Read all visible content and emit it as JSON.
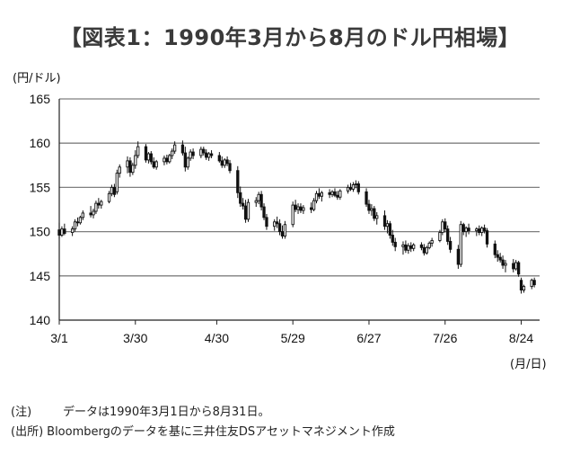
{
  "title": "【図表1：1990年3月から8月のドル円相場】",
  "chart_data": {
    "type": "candlestick",
    "y_unit_label": "(円/ドル)",
    "x_unit_label": "(月/日)",
    "ylim": [
      140,
      165
    ],
    "y_ticks": [
      165,
      160,
      155,
      150,
      145,
      140
    ],
    "x_ticks": [
      {
        "label": "3/1",
        "day": 0
      },
      {
        "label": "3/30",
        "day": 29
      },
      {
        "label": "4/30",
        "day": 60
      },
      {
        "label": "5/29",
        "day": 89
      },
      {
        "label": "6/27",
        "day": 118
      },
      {
        "label": "7/26",
        "day": 147
      },
      {
        "label": "8/24",
        "day": 176
      }
    ],
    "xlim_days": [
      0,
      183
    ],
    "grid": "horizontal",
    "candles": [
      [
        0,
        150.2,
        151.0,
        149.2,
        149.6
      ],
      [
        1,
        149.6,
        150.6,
        149.4,
        150.3
      ],
      [
        2,
        150.3,
        150.9,
        149.6,
        149.8
      ],
      [
        5,
        149.9,
        150.6,
        149.5,
        150.3
      ],
      [
        6,
        150.3,
        151.4,
        150.0,
        151.1
      ],
      [
        7,
        151.1,
        151.6,
        150.6,
        151.0
      ],
      [
        8,
        151.0,
        151.8,
        150.8,
        151.6
      ],
      [
        9,
        151.6,
        152.4,
        151.3,
        152.1
      ],
      [
        12,
        152.1,
        152.9,
        151.6,
        151.9
      ],
      [
        13,
        151.9,
        152.6,
        151.5,
        152.3
      ],
      [
        14,
        152.3,
        153.5,
        152.0,
        153.2
      ],
      [
        15,
        153.2,
        153.8,
        152.6,
        153.0
      ],
      [
        16,
        153.0,
        153.6,
        152.6,
        153.4
      ],
      [
        19,
        153.4,
        154.6,
        153.2,
        154.3
      ],
      [
        20,
        154.3,
        155.3,
        154.0,
        155.0
      ],
      [
        21,
        155.0,
        155.4,
        153.9,
        154.2
      ],
      [
        22,
        154.5,
        157.0,
        154.2,
        156.6
      ],
      [
        23,
        156.6,
        157.6,
        156.1,
        157.3
      ],
      [
        26,
        157.3,
        158.5,
        156.6,
        158.0
      ],
      [
        27,
        158.0,
        158.4,
        156.2,
        156.7
      ],
      [
        28,
        156.7,
        157.8,
        156.4,
        157.5
      ],
      [
        29,
        157.5,
        159.2,
        157.1,
        158.6
      ],
      [
        30,
        158.6,
        160.2,
        158.3,
        159.6
      ],
      [
        33,
        159.6,
        159.9,
        157.8,
        158.1
      ],
      [
        34,
        158.1,
        159.0,
        157.7,
        158.8
      ],
      [
        35,
        158.8,
        159.1,
        157.6,
        157.9
      ],
      [
        36,
        157.9,
        158.4,
        157.1,
        157.3
      ],
      [
        37,
        157.3,
        158.1,
        157.0,
        157.9
      ],
      [
        40,
        157.9,
        158.6,
        157.5,
        158.3
      ],
      [
        41,
        158.3,
        158.7,
        157.6,
        157.9
      ],
      [
        42,
        157.9,
        158.8,
        157.7,
        158.6
      ],
      [
        43,
        158.6,
        159.4,
        158.2,
        159.1
      ],
      [
        44,
        159.1,
        160.2,
        158.8,
        159.8
      ],
      [
        47,
        159.8,
        160.3,
        158.6,
        158.9
      ],
      [
        48,
        158.9,
        159.6,
        156.8,
        157.3
      ],
      [
        49,
        157.3,
        158.5,
        157.0,
        158.3
      ],
      [
        50,
        158.3,
        159.3,
        158.0,
        159.0
      ],
      [
        51,
        159.0,
        159.4,
        158.2,
        158.6
      ],
      [
        54,
        158.6,
        159.6,
        158.3,
        159.3
      ],
      [
        55,
        159.3,
        159.6,
        158.6,
        158.9
      ],
      [
        56,
        158.9,
        159.3,
        158.1,
        158.4
      ],
      [
        57,
        158.4,
        159.0,
        158.0,
        158.8
      ],
      [
        58,
        158.8,
        159.2,
        158.3,
        158.6
      ],
      [
        61,
        158.6,
        159.0,
        157.8,
        158.0
      ],
      [
        62,
        158.0,
        158.5,
        157.2,
        157.5
      ],
      [
        63,
        157.5,
        158.3,
        157.2,
        158.1
      ],
      [
        64,
        158.1,
        158.5,
        157.4,
        157.7
      ],
      [
        65,
        157.7,
        158.1,
        156.6,
        156.9
      ],
      [
        68,
        156.9,
        157.4,
        153.8,
        154.4
      ],
      [
        69,
        154.4,
        155.1,
        152.8,
        153.2
      ],
      [
        70,
        153.2,
        153.8,
        152.5,
        152.9
      ],
      [
        71,
        152.9,
        153.6,
        151.0,
        151.4
      ],
      [
        72,
        151.4,
        153.7,
        151.1,
        153.3
      ],
      [
        75,
        153.3,
        153.9,
        152.8,
        153.5
      ],
      [
        76,
        153.5,
        154.5,
        153.1,
        154.2
      ],
      [
        77,
        154.2,
        154.6,
        152.4,
        152.8
      ],
      [
        78,
        152.8,
        153.2,
        151.3,
        151.6
      ],
      [
        79,
        151.6,
        152.0,
        150.2,
        150.6
      ],
      [
        82,
        150.6,
        151.4,
        150.1,
        151.1
      ],
      [
        83,
        151.1,
        151.7,
        150.4,
        150.9
      ],
      [
        84,
        150.9,
        151.4,
        149.6,
        150.0
      ],
      [
        85,
        150.0,
        150.7,
        149.2,
        149.5
      ],
      [
        86,
        149.5,
        151.2,
        149.2,
        150.8
      ],
      [
        89,
        150.8,
        153.4,
        150.5,
        153.0
      ],
      [
        90,
        153.0,
        153.6,
        152.2,
        152.5
      ],
      [
        91,
        152.5,
        153.2,
        152.0,
        152.8
      ],
      [
        92,
        152.8,
        153.2,
        152.1,
        152.4
      ],
      [
        93,
        152.4,
        153.0,
        152.0,
        152.7
      ],
      [
        96,
        152.7,
        153.3,
        152.1,
        152.5
      ],
      [
        97,
        152.5,
        153.8,
        152.3,
        153.5
      ],
      [
        98,
        153.5,
        154.6,
        153.2,
        154.3
      ],
      [
        99,
        154.3,
        154.9,
        153.7,
        154.0
      ],
      [
        100,
        154.0,
        154.6,
        153.4,
        154.4
      ],
      [
        103,
        154.4,
        154.8,
        153.8,
        154.2
      ],
      [
        104,
        154.2,
        154.7,
        153.9,
        154.5
      ],
      [
        105,
        154.5,
        154.9,
        153.9,
        154.1
      ],
      [
        106,
        154.1,
        154.6,
        153.6,
        153.9
      ],
      [
        107,
        153.9,
        154.8,
        153.6,
        154.6
      ],
      [
        110,
        154.6,
        155.3,
        154.3,
        155.0
      ],
      [
        111,
        155.0,
        155.5,
        154.6,
        154.8
      ],
      [
        112,
        154.8,
        155.6,
        154.5,
        155.3
      ],
      [
        113,
        155.3,
        155.8,
        154.9,
        155.4
      ],
      [
        114,
        155.4,
        155.7,
        154.2,
        154.5
      ],
      [
        117,
        154.5,
        154.9,
        152.8,
        153.1
      ],
      [
        118,
        153.1,
        153.6,
        152.0,
        152.4
      ],
      [
        119,
        152.4,
        153.1,
        151.8,
        152.6
      ],
      [
        120,
        152.6,
        152.9,
        151.2,
        151.5
      ],
      [
        121,
        151.5,
        152.2,
        150.8,
        151.8
      ],
      [
        124,
        151.8,
        152.4,
        150.2,
        150.6
      ],
      [
        125,
        150.6,
        151.3,
        149.8,
        150.9
      ],
      [
        126,
        150.9,
        151.2,
        149.2,
        149.6
      ],
      [
        127,
        149.6,
        150.2,
        148.4,
        148.8
      ],
      [
        128,
        148.8,
        149.3,
        147.8,
        148.3
      ],
      [
        131,
        148.3,
        148.9,
        147.4,
        148.5
      ],
      [
        132,
        148.5,
        149.0,
        147.6,
        147.9
      ],
      [
        133,
        147.9,
        148.7,
        147.5,
        148.4
      ],
      [
        134,
        148.4,
        148.8,
        147.7,
        148.1
      ],
      [
        135,
        148.1,
        148.7,
        147.8,
        148.5
      ],
      [
        138,
        148.5,
        148.8,
        147.9,
        148.2
      ],
      [
        139,
        148.2,
        148.6,
        147.3,
        147.6
      ],
      [
        140,
        147.6,
        148.4,
        147.4,
        148.2
      ],
      [
        141,
        148.2,
        148.9,
        148.0,
        148.7
      ],
      [
        142,
        148.7,
        149.3,
        148.3,
        149.0
      ],
      [
        145,
        149.0,
        150.2,
        148.8,
        149.9
      ],
      [
        146,
        149.9,
        151.4,
        149.6,
        151.1
      ],
      [
        147,
        151.1,
        151.5,
        149.9,
        150.3
      ],
      [
        148,
        150.3,
        150.7,
        148.5,
        148.9
      ],
      [
        149,
        148.9,
        149.4,
        147.6,
        148.0
      ],
      [
        152,
        148.0,
        148.5,
        145.8,
        146.3
      ],
      [
        153,
        146.3,
        151.2,
        146.0,
        150.8
      ],
      [
        154,
        150.8,
        151.0,
        149.6,
        150.0
      ],
      [
        155,
        150.0,
        150.6,
        149.4,
        150.4
      ],
      [
        156,
        150.4,
        150.9,
        149.7,
        150.1
      ],
      [
        159,
        150.1,
        150.5,
        149.5,
        150.3
      ],
      [
        160,
        150.3,
        150.7,
        149.6,
        149.9
      ],
      [
        161,
        149.9,
        150.6,
        149.5,
        150.4
      ],
      [
        162,
        150.4,
        150.8,
        149.8,
        150.1
      ],
      [
        163,
        150.1,
        150.4,
        148.2,
        148.6
      ],
      [
        166,
        148.6,
        149.0,
        147.0,
        147.4
      ],
      [
        167,
        147.4,
        147.9,
        146.6,
        147.1
      ],
      [
        168,
        147.1,
        147.6,
        146.5,
        146.8
      ],
      [
        169,
        146.8,
        147.3,
        145.8,
        146.2
      ],
      [
        170,
        146.2,
        146.8,
        145.4,
        146.4
      ],
      [
        173,
        146.4,
        146.9,
        145.4,
        145.8
      ],
      [
        174,
        145.8,
        146.8,
        145.6,
        146.5
      ],
      [
        175,
        146.5,
        146.7,
        144.9,
        145.2
      ],
      [
        176,
        144.5,
        144.8,
        143.0,
        143.4
      ],
      [
        177,
        143.4,
        144.0,
        143.1,
        143.8
      ],
      [
        180,
        143.8,
        144.7,
        143.5,
        144.5
      ],
      [
        181,
        144.5,
        144.8,
        143.7,
        144.0
      ]
    ]
  },
  "notes": [
    {
      "label": "(注)",
      "text": "データは1990年3月1日から8月31日。"
    },
    {
      "label": "(出所)",
      "text": "Bloombergのデータを基に三井住友DSアセットマネジメント作成"
    }
  ]
}
